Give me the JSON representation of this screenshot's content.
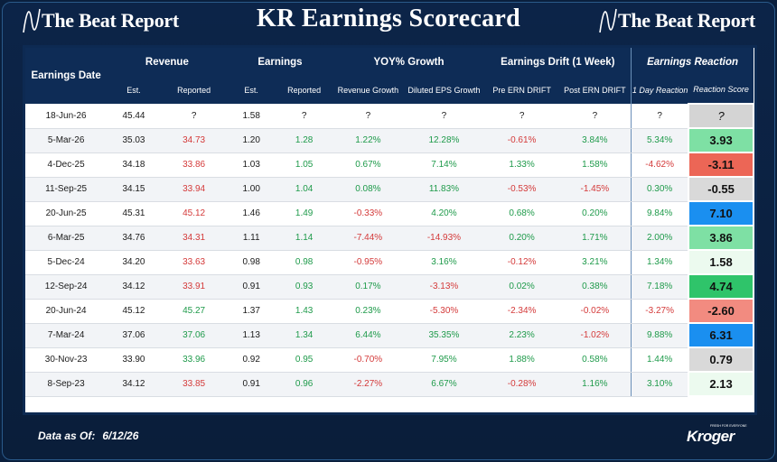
{
  "brand": {
    "name": "The Beat Report",
    "name_right": "The Beat Report"
  },
  "title": "KR Earnings Scorecard",
  "headers": {
    "earnings_date": "Earnings Date",
    "revenue": "Revenue",
    "earnings": "Earnings",
    "yoy_growth": "YOY% Growth",
    "drift": "Earnings Drift (1 Week)",
    "reaction": "Earnings Reaction",
    "sub": {
      "rev_est": "Est.",
      "rev_reported": "Reported",
      "eps_est": "Est.",
      "eps_reported": "Reported",
      "revenue_growth": "Revenue Growth",
      "diluted_eps_growth": "Diluted EPS Growth",
      "pre_drift": "Pre ERN DRIFT",
      "post_drift": "Post ERN DRIFT",
      "one_day": "1 Day Reaction",
      "reaction_score": "Reaction Score"
    }
  },
  "colors": {
    "positive": "#1e9a4a",
    "negative": "#d43a3a",
    "header_bg": "#0e2c56",
    "page_bg": "#0a1f3d"
  },
  "rows": [
    {
      "date": "18-Jun-26",
      "rev_est": "45.44",
      "rev_rep": "?",
      "rev_tone": "",
      "eps_est": "1.58",
      "eps_rep": "?",
      "eps_tone": "",
      "rev_g": "?",
      "rev_g_tone": "",
      "eps_g": "?",
      "eps_g_tone": "",
      "pre": "?",
      "pre_tone": "",
      "post": "?",
      "post_tone": "",
      "one_day": "?",
      "one_day_tone": "",
      "score": "?",
      "score_color": "#d4d4d4",
      "score_italic": true
    },
    {
      "date": "5-Mar-26",
      "rev_est": "35.03",
      "rev_rep": "34.73",
      "rev_tone": "red",
      "eps_est": "1.20",
      "eps_rep": "1.28",
      "eps_tone": "green",
      "rev_g": "1.22%",
      "rev_g_tone": "green",
      "eps_g": "12.28%",
      "eps_g_tone": "green",
      "pre": "-0.61%",
      "pre_tone": "red",
      "post": "3.84%",
      "post_tone": "green",
      "one_day": "5.34%",
      "one_day_tone": "green",
      "score": "3.93",
      "score_color": "#7ee0a4",
      "score_italic": false
    },
    {
      "date": "4-Dec-25",
      "rev_est": "34.18",
      "rev_rep": "33.86",
      "rev_tone": "red",
      "eps_est": "1.03",
      "eps_rep": "1.05",
      "eps_tone": "green",
      "rev_g": "0.67%",
      "rev_g_tone": "green",
      "eps_g": "7.14%",
      "eps_g_tone": "green",
      "pre": "1.33%",
      "pre_tone": "green",
      "post": "1.58%",
      "post_tone": "green",
      "one_day": "-4.62%",
      "one_day_tone": "red",
      "score": "-3.11",
      "score_color": "#ec6656",
      "score_italic": false
    },
    {
      "date": "11-Sep-25",
      "rev_est": "34.15",
      "rev_rep": "33.94",
      "rev_tone": "red",
      "eps_est": "1.00",
      "eps_rep": "1.04",
      "eps_tone": "green",
      "rev_g": "0.08%",
      "rev_g_tone": "green",
      "eps_g": "11.83%",
      "eps_g_tone": "green",
      "pre": "-0.53%",
      "pre_tone": "red",
      "post": "-1.45%",
      "post_tone": "red",
      "one_day": "0.30%",
      "one_day_tone": "green",
      "score": "-0.55",
      "score_color": "#d9d9d9",
      "score_italic": false
    },
    {
      "date": "20-Jun-25",
      "rev_est": "45.31",
      "rev_rep": "45.12",
      "rev_tone": "red",
      "eps_est": "1.46",
      "eps_rep": "1.49",
      "eps_tone": "green",
      "rev_g": "-0.33%",
      "rev_g_tone": "red",
      "eps_g": "4.20%",
      "eps_g_tone": "green",
      "pre": "0.68%",
      "pre_tone": "green",
      "post": "0.20%",
      "post_tone": "green",
      "one_day": "9.84%",
      "one_day_tone": "green",
      "score": "7.10",
      "score_color": "#1a8ff0",
      "score_italic": false
    },
    {
      "date": "6-Mar-25",
      "rev_est": "34.76",
      "rev_rep": "34.31",
      "rev_tone": "red",
      "eps_est": "1.11",
      "eps_rep": "1.14",
      "eps_tone": "green",
      "rev_g": "-7.44%",
      "rev_g_tone": "red",
      "eps_g": "-14.93%",
      "eps_g_tone": "red",
      "pre": "0.20%",
      "pre_tone": "green",
      "post": "1.71%",
      "post_tone": "green",
      "one_day": "2.00%",
      "one_day_tone": "green",
      "score": "3.86",
      "score_color": "#7ee0a4",
      "score_italic": false
    },
    {
      "date": "5-Dec-24",
      "rev_est": "34.20",
      "rev_rep": "33.63",
      "rev_tone": "red",
      "eps_est": "0.98",
      "eps_rep": "0.98",
      "eps_tone": "green",
      "rev_g": "-0.95%",
      "rev_g_tone": "red",
      "eps_g": "3.16%",
      "eps_g_tone": "green",
      "pre": "-0.12%",
      "pre_tone": "red",
      "post": "3.21%",
      "post_tone": "green",
      "one_day": "1.34%",
      "one_day_tone": "green",
      "score": "1.58",
      "score_color": "#ecfaef",
      "score_italic": false
    },
    {
      "date": "12-Sep-24",
      "rev_est": "34.12",
      "rev_rep": "33.91",
      "rev_tone": "red",
      "eps_est": "0.91",
      "eps_rep": "0.93",
      "eps_tone": "green",
      "rev_g": "0.17%",
      "rev_g_tone": "green",
      "eps_g": "-3.13%",
      "eps_g_tone": "red",
      "pre": "0.02%",
      "pre_tone": "green",
      "post": "0.38%",
      "post_tone": "green",
      "one_day": "7.18%",
      "one_day_tone": "green",
      "score": "4.74",
      "score_color": "#2fc46a",
      "score_italic": false
    },
    {
      "date": "20-Jun-24",
      "rev_est": "45.12",
      "rev_rep": "45.27",
      "rev_tone": "green",
      "eps_est": "1.37",
      "eps_rep": "1.43",
      "eps_tone": "green",
      "rev_g": "0.23%",
      "rev_g_tone": "green",
      "eps_g": "-5.30%",
      "eps_g_tone": "red",
      "pre": "-2.34%",
      "pre_tone": "red",
      "post": "-0.02%",
      "post_tone": "red",
      "one_day": "-3.27%",
      "one_day_tone": "red",
      "score": "-2.60",
      "score_color": "#f28b80",
      "score_italic": false
    },
    {
      "date": "7-Mar-24",
      "rev_est": "37.06",
      "rev_rep": "37.06",
      "rev_tone": "green",
      "eps_est": "1.13",
      "eps_rep": "1.34",
      "eps_tone": "green",
      "rev_g": "6.44%",
      "rev_g_tone": "green",
      "eps_g": "35.35%",
      "eps_g_tone": "green",
      "pre": "2.23%",
      "pre_tone": "green",
      "post": "-1.02%",
      "post_tone": "red",
      "one_day": "9.88%",
      "one_day_tone": "green",
      "score": "6.31",
      "score_color": "#1a8ff0",
      "score_italic": false
    },
    {
      "date": "30-Nov-23",
      "rev_est": "33.90",
      "rev_rep": "33.96",
      "rev_tone": "green",
      "eps_est": "0.92",
      "eps_rep": "0.95",
      "eps_tone": "green",
      "rev_g": "-0.70%",
      "rev_g_tone": "red",
      "eps_g": "7.95%",
      "eps_g_tone": "green",
      "pre": "1.88%",
      "pre_tone": "green",
      "post": "0.58%",
      "post_tone": "green",
      "one_day": "1.44%",
      "one_day_tone": "green",
      "score": "0.79",
      "score_color": "#d9d9d9",
      "score_italic": false
    },
    {
      "date": "8-Sep-23",
      "rev_est": "34.12",
      "rev_rep": "33.85",
      "rev_tone": "red",
      "eps_est": "0.91",
      "eps_rep": "0.96",
      "eps_tone": "green",
      "rev_g": "-2.27%",
      "rev_g_tone": "red",
      "eps_g": "6.67%",
      "eps_g_tone": "green",
      "pre": "-0.28%",
      "pre_tone": "red",
      "post": "1.16%",
      "post_tone": "green",
      "one_day": "3.10%",
      "one_day_tone": "green",
      "score": "2.13",
      "score_color": "#ecfaef",
      "score_italic": false
    }
  ],
  "footer": {
    "label": "Data as Of:",
    "date": "6/12/26"
  },
  "logo": {
    "wordmark": "Kroger",
    "tag": "FRESH FOR EVERYONE",
    "icon": "kroger-logo-icon"
  }
}
